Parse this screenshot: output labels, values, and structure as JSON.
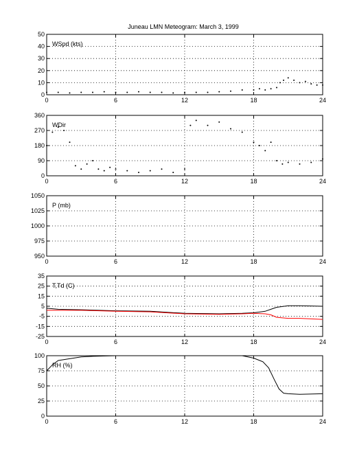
{
  "title": "Juneau LMN Meteogram:      March  3, 1999",
  "chart_data": [
    {
      "type": "scatter",
      "label": "WSpd (kts)",
      "x_ticks": [
        "0",
        "6",
        "12",
        "18",
        "24"
      ],
      "xlim": [
        0,
        24
      ],
      "ylim": [
        0,
        50
      ],
      "y_ticks": [
        "0",
        "10",
        "20",
        "30",
        "40",
        "50"
      ],
      "grid": true,
      "series": [
        {
          "color": "#000000",
          "points": [
            [
              0,
              2
            ],
            [
              1,
              2
            ],
            [
              2,
              1.5
            ],
            [
              3,
              2
            ],
            [
              4,
              2
            ],
            [
              5,
              2.5
            ],
            [
              6,
              2
            ],
            [
              7,
              2
            ],
            [
              8,
              2.5
            ],
            [
              9,
              2
            ],
            [
              10,
              2
            ],
            [
              11,
              1.5
            ],
            [
              12,
              2
            ],
            [
              13,
              2
            ],
            [
              14,
              2
            ],
            [
              15,
              2.5
            ],
            [
              16,
              3
            ],
            [
              17,
              4
            ],
            [
              18,
              4
            ],
            [
              18.5,
              5
            ],
            [
              19,
              4
            ],
            [
              19.5,
              5
            ],
            [
              20,
              6
            ],
            [
              20.3,
              10
            ],
            [
              20.6,
              12
            ],
            [
              21,
              14
            ],
            [
              21.5,
              12
            ],
            [
              22,
              10
            ],
            [
              22.5,
              11
            ],
            [
              23,
              9
            ],
            [
              23.5,
              8
            ],
            [
              24,
              8
            ]
          ]
        }
      ]
    },
    {
      "type": "scatter",
      "label": "WDir",
      "x_ticks": [
        "0",
        "6",
        "12",
        "18",
        "24"
      ],
      "xlim": [
        0,
        24
      ],
      "ylim": [
        0,
        360
      ],
      "y_ticks": [
        "0",
        "90",
        "180",
        "270",
        "360"
      ],
      "grid": true,
      "series": [
        {
          "color": "#000000",
          "points": [
            [
              0,
              180
            ],
            [
              0.5,
              260
            ],
            [
              1,
              290
            ],
            [
              1.5,
              270
            ],
            [
              2,
              200
            ],
            [
              2.5,
              60
            ],
            [
              3,
              40
            ],
            [
              3.5,
              70
            ],
            [
              4,
              90
            ],
            [
              4.5,
              40
            ],
            [
              5,
              30
            ],
            [
              5.5,
              50
            ],
            [
              6,
              40
            ],
            [
              7,
              30
            ],
            [
              8,
              20
            ],
            [
              9,
              30
            ],
            [
              10,
              40
            ],
            [
              11,
              20
            ],
            [
              12,
              40
            ],
            [
              12.5,
              300
            ],
            [
              13,
              330
            ],
            [
              14,
              300
            ],
            [
              15,
              320
            ],
            [
              16,
              280
            ],
            [
              17,
              260
            ],
            [
              18,
              200
            ],
            [
              18.5,
              180
            ],
            [
              19,
              150
            ],
            [
              19.5,
              200
            ],
            [
              20,
              90
            ],
            [
              20.5,
              70
            ],
            [
              21,
              80
            ],
            [
              22,
              70
            ],
            [
              23,
              80
            ],
            [
              24,
              100
            ]
          ]
        }
      ]
    },
    {
      "type": "line",
      "label": "P (mb)",
      "x_ticks": [
        "0",
        "6",
        "12",
        "18",
        "24"
      ],
      "xlim": [
        0,
        24
      ],
      "ylim": [
        950,
        1050
      ],
      "y_ticks": [
        "950",
        "975",
        "1000",
        "1025",
        "1050"
      ],
      "grid": true,
      "series": []
    },
    {
      "type": "line",
      "label": "T,Td (C)",
      "x_ticks": [
        "0",
        "6",
        "12",
        "18",
        "24"
      ],
      "xlim": [
        0,
        24
      ],
      "ylim": [
        -25,
        35
      ],
      "y_ticks": [
        "-25",
        "-15",
        "-5",
        "5",
        "15",
        "25",
        "35"
      ],
      "grid": true,
      "series": [
        {
          "color": "#000000",
          "points": [
            [
              0,
              3
            ],
            [
              1,
              2
            ],
            [
              3,
              1.5
            ],
            [
              6,
              0.5
            ],
            [
              9,
              0
            ],
            [
              12,
              -2
            ],
            [
              15,
              -2.5
            ],
            [
              17,
              -2
            ],
            [
              18,
              -1.5
            ],
            [
              19,
              0
            ],
            [
              19.5,
              2
            ],
            [
              20,
              4
            ],
            [
              21,
              5.5
            ],
            [
              22,
              5.5
            ],
            [
              24,
              5
            ]
          ]
        },
        {
          "color": "#ff0000",
          "points": [
            [
              0,
              1
            ],
            [
              1,
              1
            ],
            [
              3,
              1
            ],
            [
              6,
              0
            ],
            [
              9,
              -0.5
            ],
            [
              12,
              -2.5
            ],
            [
              15,
              -3
            ],
            [
              17,
              -2.5
            ],
            [
              18,
              -2
            ],
            [
              19,
              -2.5
            ],
            [
              19.5,
              -3.5
            ],
            [
              20,
              -6
            ],
            [
              21,
              -7
            ],
            [
              22,
              -7
            ],
            [
              24,
              -8
            ]
          ]
        }
      ]
    },
    {
      "type": "line",
      "label": "RH (%)",
      "x_ticks": [
        "0",
        "6",
        "12",
        "18",
        "24"
      ],
      "xlim": [
        0,
        24
      ],
      "ylim": [
        0,
        100
      ],
      "y_ticks": [
        "0",
        "25",
        "50",
        "75",
        "100"
      ],
      "grid": true,
      "series": [
        {
          "color": "#000000",
          "points": [
            [
              0,
              75
            ],
            [
              0.5,
              85
            ],
            [
              1,
              92
            ],
            [
              2,
              95
            ],
            [
              3,
              98
            ],
            [
              4,
              99
            ],
            [
              6,
              100
            ],
            [
              9,
              100
            ],
            [
              12,
              100
            ],
            [
              15,
              100
            ],
            [
              17,
              100
            ],
            [
              18,
              96
            ],
            [
              18.8,
              90
            ],
            [
              19.3,
              80
            ],
            [
              19.8,
              60
            ],
            [
              20.2,
              45
            ],
            [
              20.6,
              38
            ],
            [
              21,
              37
            ],
            [
              22,
              36
            ],
            [
              24,
              37
            ]
          ]
        }
      ]
    }
  ]
}
